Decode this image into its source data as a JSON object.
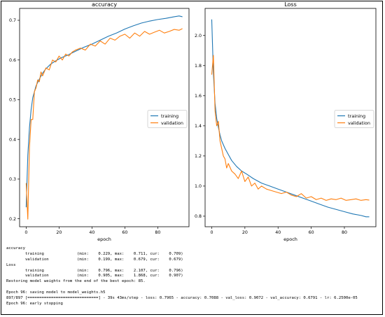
{
  "chart_data": [
    {
      "type": "line",
      "title": "accuracy",
      "xlabel": "epoch",
      "ylabel": "",
      "xlim": [
        -4,
        99
      ],
      "ylim": [
        0.18,
        0.73
      ],
      "xticks": [
        0,
        20,
        40,
        60,
        80
      ],
      "yticks": [
        0.2,
        0.3,
        0.4,
        0.5,
        0.6,
        0.7
      ],
      "ytick_labels": [
        "0.2",
        "0.3",
        "0.4",
        "0.5",
        "0.6",
        "0.7"
      ],
      "legend": "center-right",
      "series": [
        {
          "name": "training",
          "color": "#1f77b4",
          "x": [
            0,
            1,
            2,
            3,
            4,
            5,
            6,
            8,
            10,
            12,
            15,
            18,
            21,
            25,
            30,
            35,
            40,
            45,
            50,
            55,
            60,
            65,
            70,
            75,
            80,
            85,
            90,
            93,
            95
          ],
          "y": [
            0.229,
            0.36,
            0.43,
            0.475,
            0.505,
            0.52,
            0.535,
            0.552,
            0.567,
            0.578,
            0.59,
            0.598,
            0.605,
            0.612,
            0.622,
            0.632,
            0.64,
            0.65,
            0.66,
            0.668,
            0.678,
            0.686,
            0.693,
            0.698,
            0.702,
            0.705,
            0.709,
            0.711,
            0.709
          ]
        },
        {
          "name": "validation",
          "color": "#ff7f0e",
          "x": [
            0,
            1,
            2,
            3,
            4,
            5,
            6,
            7,
            8,
            9,
            10,
            12,
            14,
            16,
            18,
            20,
            22,
            24,
            26,
            28,
            30,
            33,
            36,
            39,
            42,
            45,
            48,
            51,
            54,
            57,
            60,
            63,
            66,
            69,
            72,
            75,
            78,
            81,
            84,
            87,
            90,
            93,
            95
          ],
          "y": [
            0.29,
            0.199,
            0.38,
            0.45,
            0.45,
            0.52,
            0.53,
            0.55,
            0.545,
            0.57,
            0.56,
            0.58,
            0.575,
            0.6,
            0.595,
            0.61,
            0.6,
            0.615,
            0.61,
            0.62,
            0.625,
            0.63,
            0.625,
            0.64,
            0.635,
            0.648,
            0.64,
            0.655,
            0.65,
            0.66,
            0.665,
            0.655,
            0.668,
            0.66,
            0.672,
            0.665,
            0.67,
            0.675,
            0.668,
            0.672,
            0.677,
            0.675,
            0.679
          ]
        }
      ]
    },
    {
      "type": "line",
      "title": "Loss",
      "xlabel": "epoch",
      "ylabel": "",
      "xlim": [
        -4,
        99
      ],
      "ylim": [
        0.73,
        2.18
      ],
      "xticks": [
        0,
        20,
        40,
        60,
        80
      ],
      "yticks": [
        0.8,
        1.0,
        1.2,
        1.4,
        1.6,
        1.8,
        2.0
      ],
      "ytick_labels": [
        "0.8",
        "1.0",
        "1.2",
        "1.4",
        "1.6",
        "1.8",
        "2.0"
      ],
      "legend": "center-right",
      "series": [
        {
          "name": "training",
          "color": "#1f77b4",
          "x": [
            0,
            1,
            2,
            3,
            4,
            5,
            6,
            8,
            10,
            12,
            15,
            18,
            21,
            25,
            30,
            35,
            40,
            45,
            50,
            55,
            60,
            65,
            70,
            75,
            80,
            85,
            90,
            93,
            95
          ],
          "y": [
            2.107,
            1.75,
            1.55,
            1.45,
            1.39,
            1.34,
            1.3,
            1.25,
            1.21,
            1.17,
            1.13,
            1.1,
            1.08,
            1.05,
            1.02,
            1.0,
            0.98,
            0.96,
            0.94,
            0.92,
            0.9,
            0.88,
            0.86,
            0.845,
            0.83,
            0.815,
            0.805,
            0.796,
            0.796
          ]
        },
        {
          "name": "validation",
          "color": "#ff7f0e",
          "x": [
            0,
            1,
            2,
            3,
            4,
            5,
            6,
            7,
            8,
            9,
            10,
            12,
            14,
            16,
            18,
            20,
            22,
            24,
            26,
            28,
            30,
            33,
            36,
            39,
            42,
            45,
            48,
            51,
            54,
            57,
            60,
            63,
            66,
            69,
            72,
            75,
            78,
            81,
            84,
            87,
            90,
            93,
            95
          ],
          "y": [
            1.74,
            1.868,
            1.5,
            1.4,
            1.43,
            1.3,
            1.25,
            1.2,
            1.18,
            1.12,
            1.15,
            1.1,
            1.08,
            1.05,
            1.1,
            1.03,
            1.06,
            1.0,
            1.02,
            0.98,
            1.0,
            0.98,
            0.97,
            0.96,
            0.95,
            0.96,
            0.94,
            0.93,
            0.95,
            0.92,
            0.93,
            0.91,
            0.92,
            0.905,
            0.915,
            0.91,
            0.92,
            0.905,
            0.91,
            0.915,
            0.905,
            0.91,
            0.907
          ]
        }
      ]
    }
  ],
  "log": {
    "lines": [
      "accuracy",
      "        training              (min:    0.229, max:    0.711, cur:    0.709)",
      "        validation            (min:    0.199, max:    0.679, cur:    0.679)",
      "Loss",
      "        training              (min:    0.796, max:    2.107, cur:    0.796)",
      "        validation            (min:    0.905, max:    1.868, cur:    0.907)",
      "Restoring model weights from the end of the best epoch: 85.",
      "",
      "Epoch 96: saving model to model_weights.h5",
      "897/897 [==============================] - 39s 43ms/step - loss: 0.7965 - accuracy: 0.7088 - val_loss: 0.9072 - val_accuracy: 0.6791 - lr: 6.2500e-05",
      "Epoch 96: early stopping"
    ]
  }
}
